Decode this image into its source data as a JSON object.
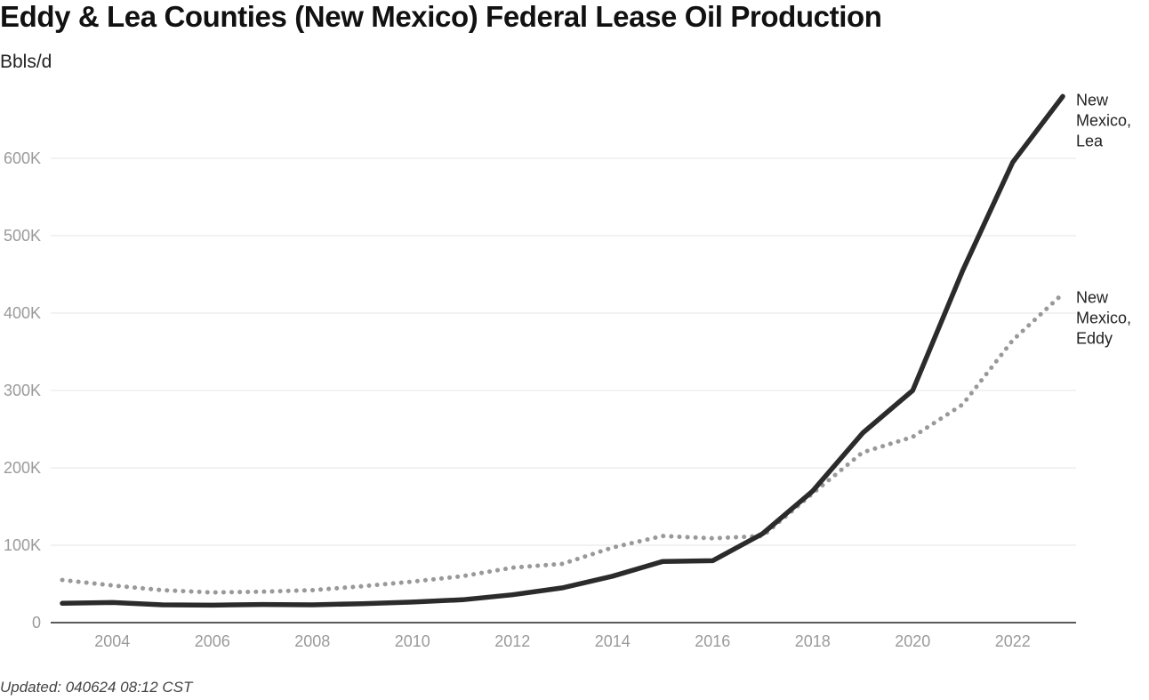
{
  "chart_title": "Eddy & Lea Counties (New Mexico) Federal Lease Oil Production",
  "unit_label": "Bbls/d",
  "footer_note": "Updated: 040624 08:12 CST",
  "colors": {
    "lea": "#2b2b2b",
    "eddy": "#999999",
    "grid": "#e4e4e4",
    "axis": "#222222",
    "tick": "#9a9a9a"
  },
  "chart_data": {
    "type": "line",
    "title": "Eddy & Lea Counties (New Mexico) Federal Lease Oil Production",
    "xlabel": "",
    "ylabel": "Bbls/d",
    "xlim": [
      2003,
      2023
    ],
    "ylim": [
      0,
      600000
    ],
    "x": [
      2003,
      2004,
      2005,
      2006,
      2007,
      2008,
      2009,
      2010,
      2011,
      2012,
      2013,
      2014,
      2015,
      2016,
      2017,
      2018,
      2019,
      2020,
      2021,
      2022,
      2023
    ],
    "x_ticks": [
      2004,
      2006,
      2008,
      2010,
      2012,
      2014,
      2016,
      2018,
      2020,
      2022
    ],
    "x_tick_labels": [
      "2004",
      "2006",
      "2008",
      "2010",
      "2012",
      "2014",
      "2016",
      "2018",
      "2020",
      "2022"
    ],
    "y_ticks": [
      0,
      100000,
      200000,
      300000,
      400000,
      500000,
      600000
    ],
    "y_tick_labels": [
      "0",
      "100K",
      "200K",
      "300K",
      "400K",
      "500K",
      "600K"
    ],
    "grid": true,
    "legend": "direct labels at right end of lines",
    "series": [
      {
        "name": "New Mexico, Lea",
        "label_lines": [
          "New",
          "Mexico,",
          "Lea"
        ],
        "style": "solid",
        "values": [
          25000,
          26000,
          23000,
          22500,
          23500,
          23000,
          24500,
          26500,
          29500,
          36000,
          45000,
          60000,
          79000,
          80000,
          115000,
          170000,
          245000,
          300000,
          455000,
          595000,
          680000
        ]
      },
      {
        "name": "New Mexico, Eddy",
        "label_lines": [
          "New",
          "Mexico,",
          "Eddy"
        ],
        "style": "dotted",
        "values": [
          55000,
          48000,
          42000,
          39000,
          40000,
          42000,
          47000,
          53000,
          60000,
          71000,
          76000,
          97000,
          112000,
          109000,
          112000,
          167000,
          220000,
          240000,
          282000,
          365000,
          425000
        ]
      }
    ]
  }
}
